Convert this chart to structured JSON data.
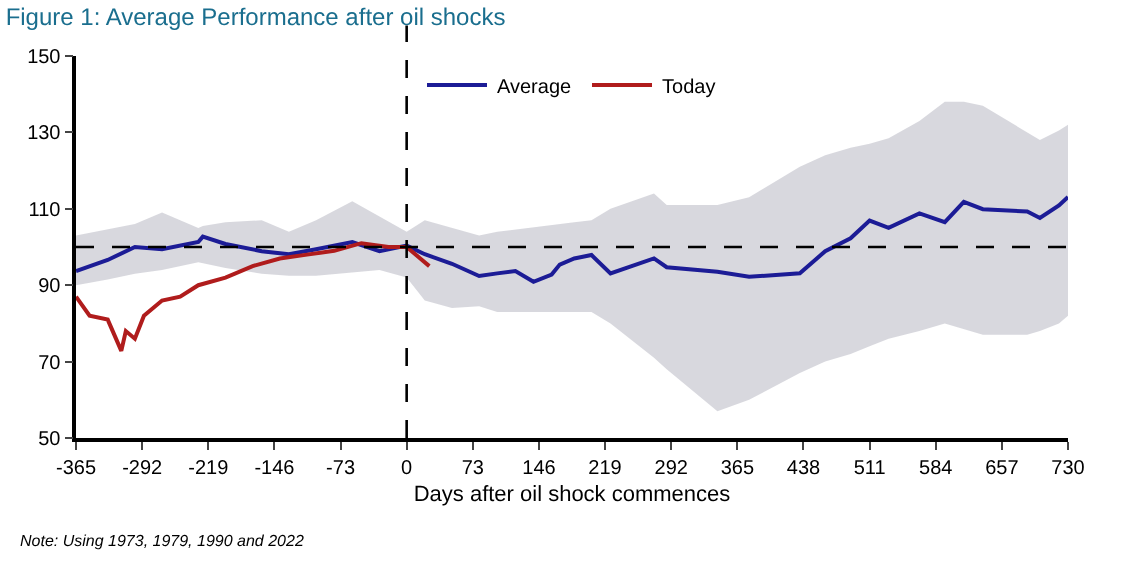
{
  "chart_data": {
    "type": "line",
    "title": "Figure 1: Average Performance after oil shocks",
    "xlabel": "Days after oil shock commences",
    "annotations": [
      "Note: Using 1973, 1979, 1990 and 2022"
    ],
    "series": [
      {
        "name": "Average",
        "color": "#1c1c96",
        "x": [
          -365,
          -330,
          -300,
          -270,
          -230,
          -225,
          -200,
          -160,
          -130,
          -100,
          -60,
          -30,
          0,
          20,
          50,
          80,
          100,
          120,
          140,
          160,
          169,
          185,
          204,
          225,
          273,
          287,
          343,
          378,
          434,
          462,
          490,
          511,
          532,
          566,
          594,
          615,
          636,
          685,
          699,
          720,
          730
        ],
        "values": [
          93.7,
          96.6,
          100,
          99.4,
          101.3,
          102.7,
          100.8,
          98.9,
          98.1,
          99.4,
          101.3,
          98.9,
          100.4,
          98.1,
          95.6,
          92.4,
          93.1,
          93.7,
          90.9,
          92.8,
          95.4,
          97,
          97.9,
          93.1,
          97,
          94.7,
          93.5,
          92.2,
          93.1,
          98.9,
          102.3,
          106.9,
          105,
          108.8,
          106.5,
          111.8,
          109.9,
          109.3,
          107.6,
          110.9,
          113.1
        ],
        "lower": [
          90,
          91.5,
          93,
          94,
          96,
          96,
          94.5,
          93,
          92.5,
          92.5,
          93.5,
          94,
          92,
          86,
          84,
          84.5,
          83,
          83,
          83,
          83,
          83,
          83,
          83,
          80,
          71,
          68,
          57,
          60,
          67,
          70,
          72,
          74,
          76,
          78,
          80,
          78.5,
          77,
          77,
          78,
          80,
          82
        ],
        "upper": [
          103,
          104.5,
          106,
          109,
          105,
          105.5,
          106.5,
          107,
          104,
          107,
          112,
          108,
          104,
          107,
          105,
          103,
          104,
          104.5,
          105,
          105.5,
          106,
          106.5,
          107,
          110,
          114,
          111,
          111,
          113,
          121,
          124,
          126,
          127,
          128.5,
          133,
          138,
          138,
          137,
          130,
          128,
          130.5,
          132
        ]
      },
      {
        "name": "Today",
        "color": "#b01c1c",
        "x": [
          -365,
          -350,
          -330,
          -315,
          -310,
          -300,
          -290,
          -270,
          -250,
          -230,
          -200,
          -170,
          -140,
          -110,
          -80,
          -50,
          -20,
          0,
          15,
          25
        ],
        "values": [
          87,
          82,
          81,
          72.8,
          78,
          76,
          82,
          86,
          87,
          90,
          92,
          95,
          97,
          98,
          99,
          101,
          100,
          100,
          97,
          95
        ]
      }
    ],
    "xlim": [
      -365,
      730
    ],
    "xticks": [
      -365,
      -292,
      -219,
      -146,
      -73,
      0,
      73,
      146,
      219,
      292,
      365,
      438,
      511,
      584,
      657,
      730
    ],
    "ylim": [
      50,
      150
    ],
    "yticks": [
      50,
      70,
      90,
      110,
      130,
      150
    ],
    "ref_lines": [
      {
        "axis": "y",
        "value": 100,
        "line_style": "dashed",
        "color": "#000000"
      },
      {
        "axis": "x",
        "value": 0,
        "line_style": "dashed",
        "color": "#000000"
      }
    ],
    "legend": "top",
    "line_style": "solid",
    "marker": "none"
  }
}
